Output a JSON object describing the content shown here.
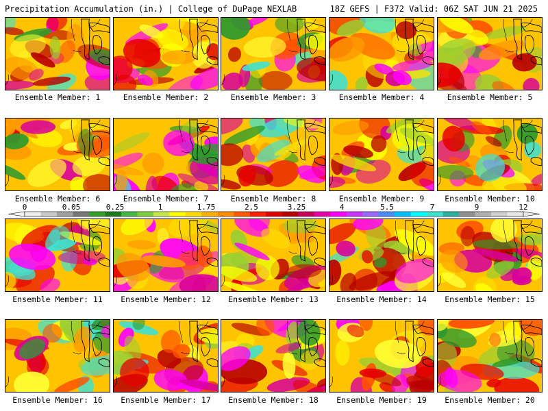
{
  "header": {
    "title_left": "Precipitation Accumulation (in.) | College of DuPage NEXLAB",
    "title_right": "18Z GEFS | F372 Valid: 06Z SAT JUN 21 2025"
  },
  "colorbar": {
    "tick_labels": [
      "0",
      "0.05",
      "0.25",
      "1",
      "1.75",
      "2.5",
      "3.25",
      "4",
      "5.5",
      "7",
      "9",
      "12"
    ],
    "colors": [
      "#eeeeee",
      "#c8c8c8",
      "#a0a0a0",
      "#787878",
      "#33a02c",
      "#1d7a1d",
      "#44b844",
      "#7fcc40",
      "#c6e84a",
      "#ffff00",
      "#ffdd00",
      "#ffb000",
      "#ff8c00",
      "#ff5a00",
      "#ff1f00",
      "#e00000",
      "#b40000",
      "#c8005a",
      "#e600a8",
      "#ff00ff",
      "#cc33ff",
      "#9966ff",
      "#4d8cff",
      "#00bfff",
      "#00ffff",
      "#40e0d0",
      "#2bb0a0",
      "#909090",
      "#b0b0b0",
      "#d0d0d0",
      "#e8e8e8"
    ]
  },
  "members": [
    {
      "caption": "Ensemble Member: 1"
    },
    {
      "caption": "Ensemble Member: 2"
    },
    {
      "caption": "Ensemble Member: 3"
    },
    {
      "caption": "Ensemble Member: 4"
    },
    {
      "caption": "Ensemble Member: 5"
    },
    {
      "caption": "Ensemble Member: 6"
    },
    {
      "caption": "Ensemble Member: 7"
    },
    {
      "caption": "Ensemble Member: 8"
    },
    {
      "caption": "Ensemble Member: 9"
    },
    {
      "caption": "Ensemble Member: 10"
    },
    {
      "caption": "Ensemble Member: 11"
    },
    {
      "caption": "Ensemble Member: 12"
    },
    {
      "caption": "Ensemble Member: 13"
    },
    {
      "caption": "Ensemble Member: 14"
    },
    {
      "caption": "Ensemble Member: 15"
    },
    {
      "caption": "Ensemble Member: 16"
    },
    {
      "caption": "Ensemble Member: 17"
    },
    {
      "caption": "Ensemble Member: 18"
    },
    {
      "caption": "Ensemble Member: 19"
    },
    {
      "caption": "Ensemble Member: 20"
    }
  ]
}
